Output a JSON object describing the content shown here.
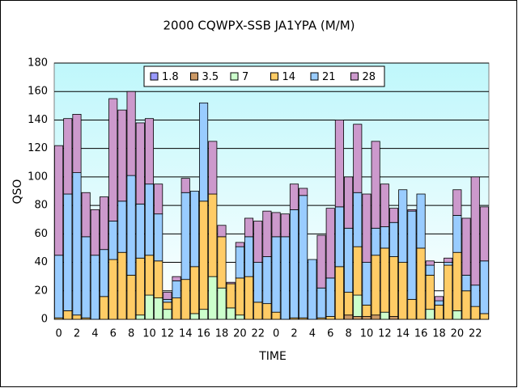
{
  "chart_data": {
    "type": "stacked_bar",
    "title": "2000 CQWPX-SSB  JA1YPA (M/M)",
    "x_label": "TIME",
    "y_label": "QSO",
    "categories": [
      "0",
      null,
      "2",
      null,
      "4",
      null,
      "6",
      null,
      "8",
      null,
      "10",
      null,
      "12",
      null,
      "14",
      null,
      "16",
      null,
      "18",
      null,
      "20",
      null,
      "22",
      null,
      "0",
      null,
      "2",
      null,
      "4",
      null,
      "6",
      null,
      "8",
      null,
      "10",
      null,
      "12",
      null,
      "14",
      null,
      "16",
      null,
      "18",
      null,
      "20",
      null,
      "22",
      null
    ],
    "series": [
      {
        "name": "1.8",
        "color": "#9999ff",
        "values": [
          0,
          0,
          0,
          0,
          0,
          0,
          0,
          0,
          0,
          0,
          0,
          0,
          0,
          0,
          0,
          0,
          0,
          0,
          0,
          0,
          0,
          0,
          0,
          0,
          0,
          0,
          0,
          0,
          0,
          0,
          0,
          0,
          0,
          0,
          0,
          0,
          0,
          0,
          0,
          0,
          0,
          0,
          0,
          0,
          0,
          0,
          0,
          0
        ]
      },
      {
        "name": "3.5",
        "color": "#cc9966",
        "values": [
          0,
          0,
          0,
          0,
          0,
          0,
          0,
          0,
          0,
          0,
          0,
          0,
          0,
          0,
          0,
          0,
          0,
          0,
          0,
          0,
          0,
          0,
          0,
          0,
          0,
          0,
          0,
          0,
          0,
          0,
          0,
          0,
          3,
          2,
          2,
          3,
          0,
          2,
          0,
          0,
          0,
          0,
          0,
          0,
          0,
          0,
          0,
          0
        ]
      },
      {
        "name": "7",
        "color": "#ccffcc",
        "values": [
          0,
          0,
          0,
          0,
          0,
          0,
          0,
          0,
          0,
          3,
          17,
          15,
          7,
          0,
          0,
          4,
          7,
          30,
          22,
          8,
          3,
          0,
          0,
          0,
          0,
          0,
          0,
          0,
          0,
          0,
          0,
          0,
          0,
          15,
          0,
          0,
          5,
          0,
          0,
          0,
          0,
          7,
          0,
          0,
          6,
          0,
          0,
          0
        ]
      },
      {
        "name": "14",
        "color": "#ffcc66",
        "values": [
          1,
          6,
          3,
          1,
          0,
          16,
          42,
          47,
          31,
          40,
          28,
          26,
          5,
          15,
          28,
          33,
          76,
          58,
          36,
          17,
          26,
          30,
          12,
          11,
          5,
          0,
          1,
          1,
          0,
          1,
          2,
          37,
          16,
          34,
          8,
          42,
          45,
          42,
          40,
          14,
          50,
          24,
          10,
          38,
          41,
          20,
          9,
          4
        ]
      },
      {
        "name": "21",
        "color": "#99ccff",
        "values": [
          44,
          82,
          100,
          57,
          45,
          33,
          27,
          36,
          70,
          38,
          50,
          33,
          2,
          12,
          61,
          53,
          69,
          0,
          0,
          0,
          22,
          28,
          28,
          33,
          53,
          58,
          76,
          86,
          42,
          21,
          27,
          42,
          45,
          38,
          30,
          19,
          15,
          24,
          51,
          62,
          38,
          7,
          3,
          2,
          26,
          11,
          15,
          37
        ]
      },
      {
        "name": "28",
        "color": "#cc99cc",
        "values": [
          77,
          53,
          41,
          31,
          32,
          37,
          86,
          64,
          59,
          57,
          46,
          21,
          5,
          3,
          10,
          0,
          0,
          37,
          8,
          1,
          3,
          13,
          29,
          32,
          17,
          16,
          18,
          5,
          0,
          37,
          49,
          61,
          36,
          48,
          48,
          61,
          30,
          10,
          0,
          1,
          0,
          3,
          3,
          3,
          18,
          40,
          76,
          38
        ]
      }
    ],
    "ylim": [
      0,
      180
    ],
    "yticks": [
      0,
      20,
      40,
      60,
      80,
      100,
      120,
      140,
      160,
      180
    ],
    "grid": true,
    "legend": "top"
  }
}
